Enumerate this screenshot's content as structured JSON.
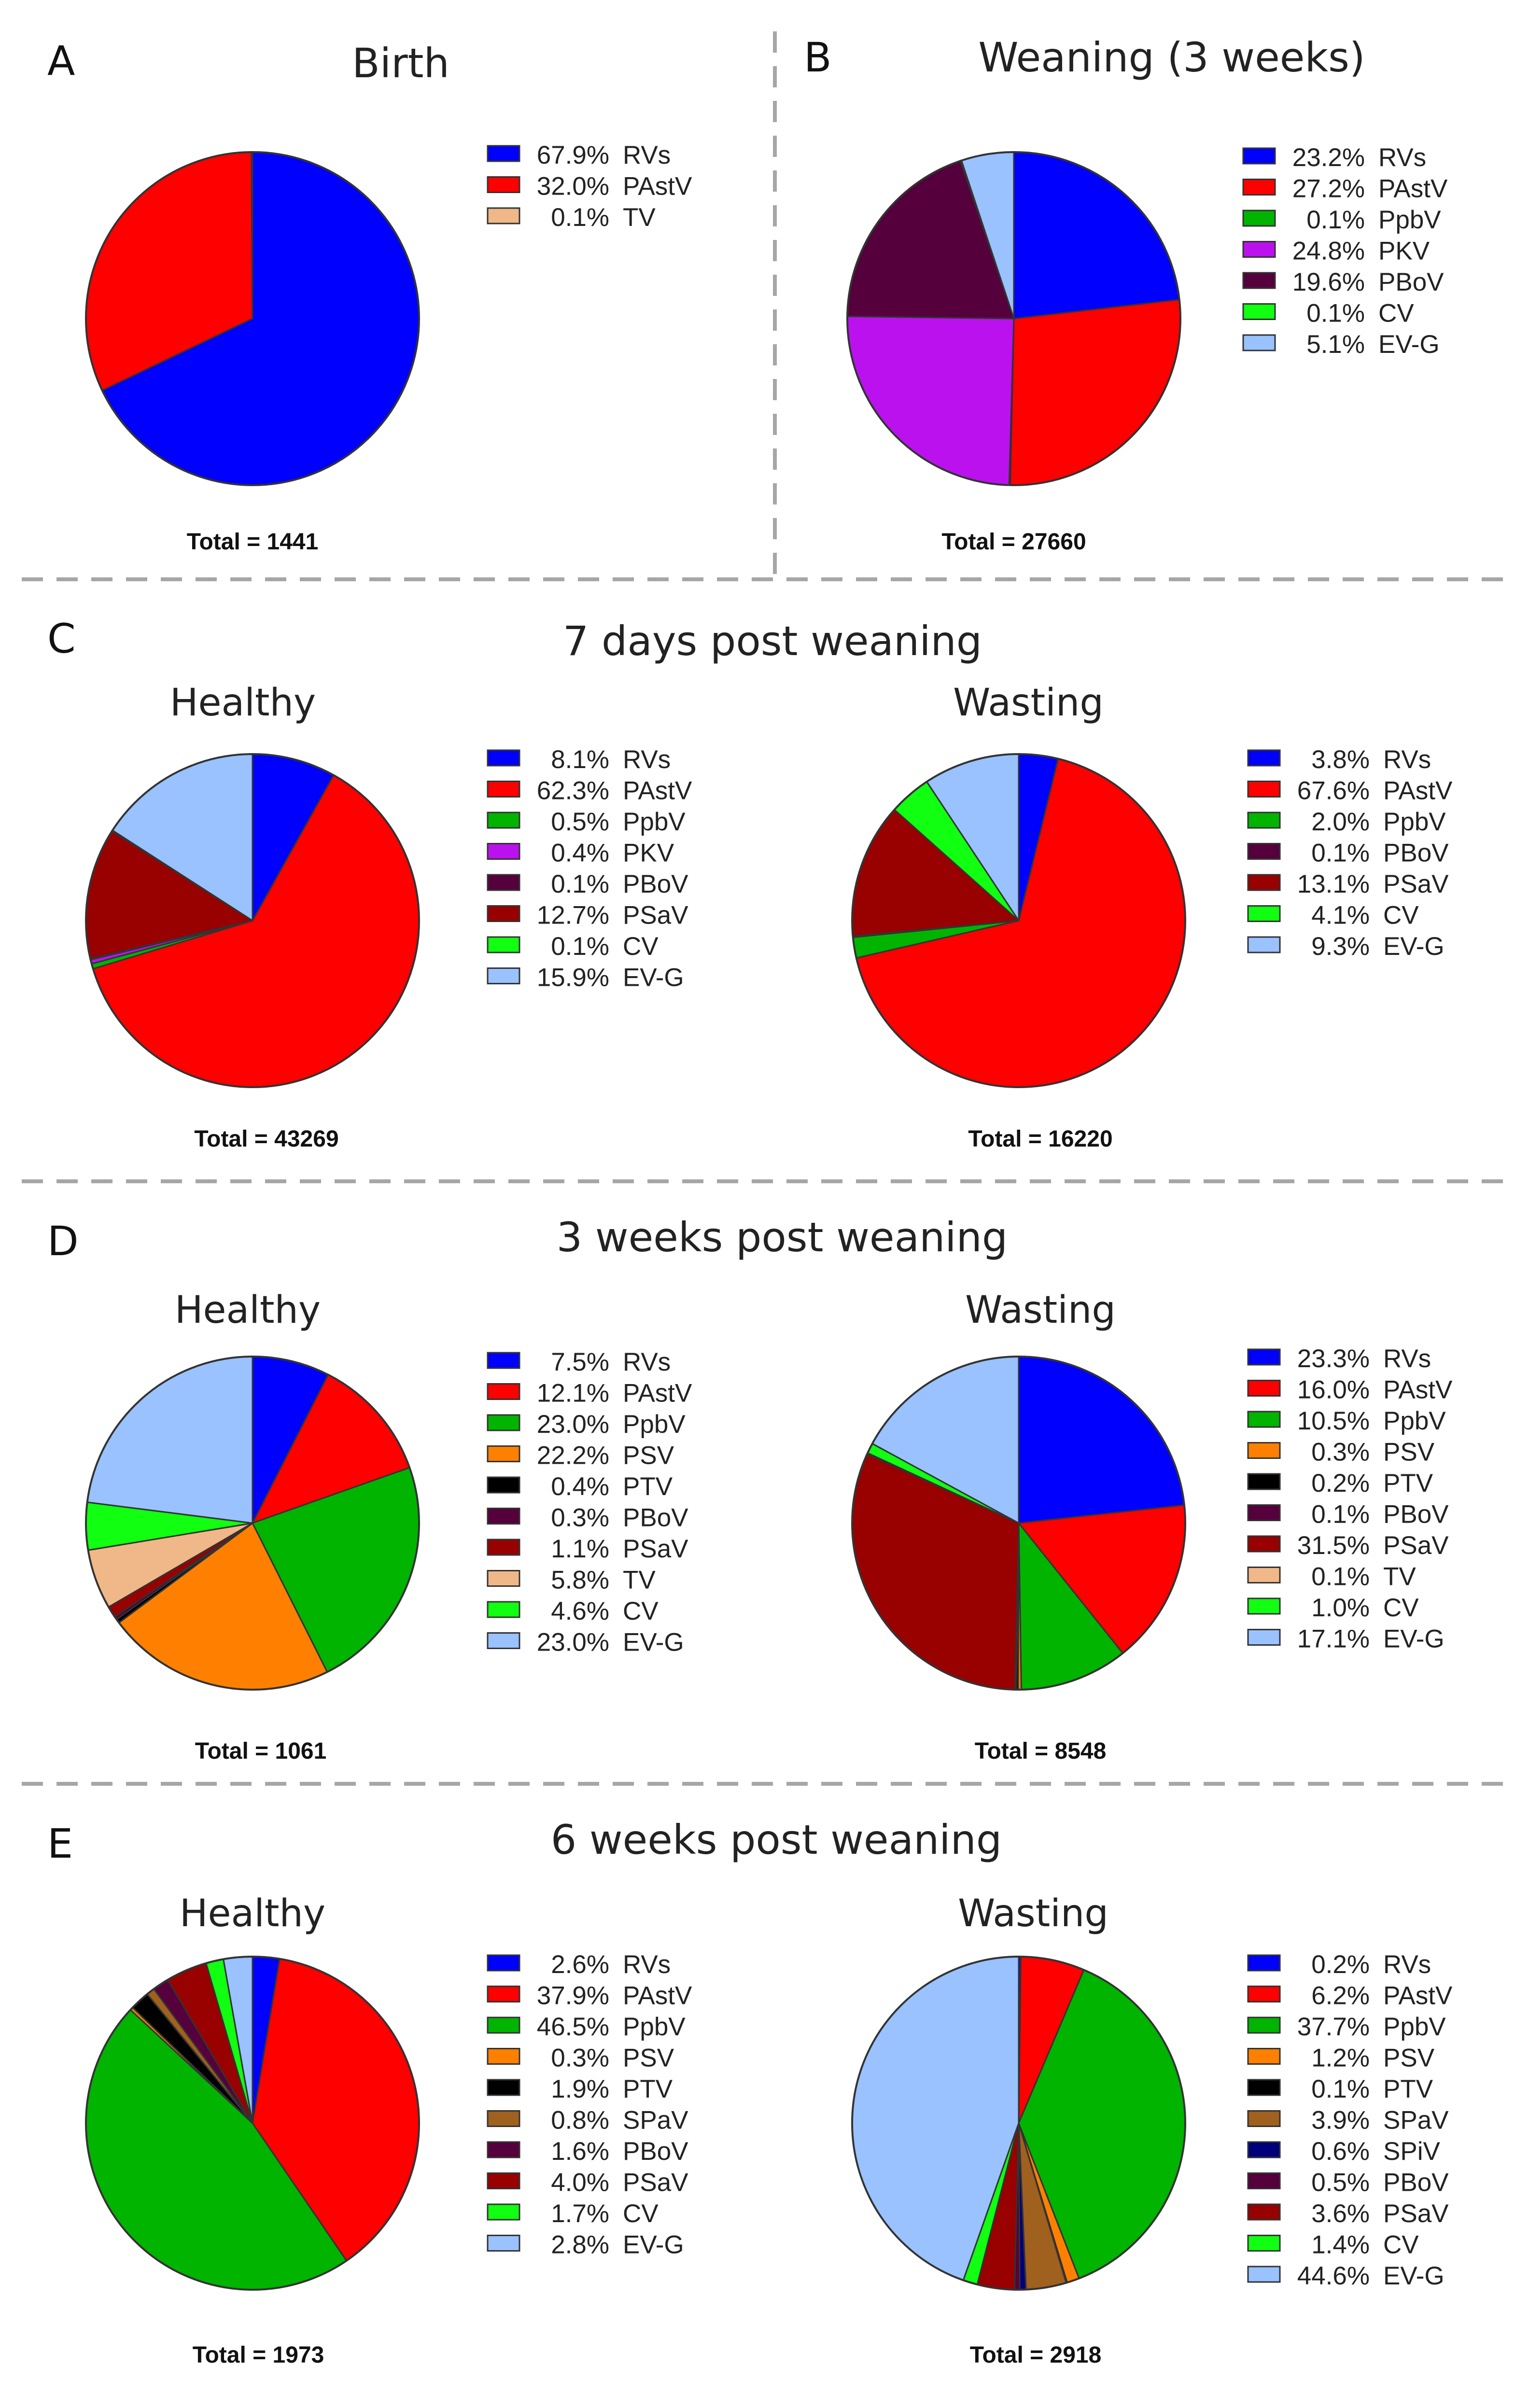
{
  "colors": {
    "RVs": "#0000ff",
    "PAstV": "#ff0000",
    "PpbV": "#00b400",
    "PKV": "#bb11ee",
    "PBoV": "#55003c",
    "CV": "#11ff11",
    "EV-G": "#99c2ff",
    "PSaV": "#990000",
    "TV": "#f0b888",
    "PSV": "#ff8000",
    "PTV": "#000000",
    "SPaV": "#a0601e",
    "SPiV": "#00007a",
    "edge": "#333333",
    "divider": "#a6a6a6"
  },
  "sections": {
    "A": {
      "letter": "A",
      "title": "Birth"
    },
    "B": {
      "letter": "B",
      "title": "Weaning (3 weeks)"
    },
    "C": {
      "letter": "C",
      "title": "7 days post weaning"
    },
    "D": {
      "letter": "D",
      "title": "3 weeks post weaning"
    },
    "E": {
      "letter": "E",
      "title": "6 weeks post weaning"
    }
  },
  "chart_data": [
    {
      "type": "pie",
      "panel": "A",
      "title": "Birth",
      "total": "Total = 1441",
      "slices": [
        {
          "pct": "67.9%",
          "label": "RVs",
          "value": 67.9
        },
        {
          "pct": "32.0%",
          "label": "PAstV",
          "value": 32.0
        },
        {
          "pct": "0.1%",
          "label": "TV",
          "value": 0.1
        }
      ]
    },
    {
      "type": "pie",
      "panel": "B",
      "title": "Weaning (3 weeks)",
      "total": "Total = 27660",
      "slices": [
        {
          "pct": "23.2%",
          "label": "RVs",
          "value": 23.2
        },
        {
          "pct": "27.2%",
          "label": "PAstV",
          "value": 27.2
        },
        {
          "pct": "0.1%",
          "label": "PpbV",
          "value": 0.1
        },
        {
          "pct": "24.8%",
          "label": "PKV",
          "value": 24.8
        },
        {
          "pct": "19.6%",
          "label": "PBoV",
          "value": 19.6
        },
        {
          "pct": "0.1%",
          "label": "CV",
          "value": 0.1
        },
        {
          "pct": "5.1%",
          "label": "EV-G",
          "value": 5.1
        }
      ]
    },
    {
      "type": "pie",
      "panel": "C",
      "title": "Healthy",
      "total": "Total = 43269",
      "slices": [
        {
          "pct": "8.1%",
          "label": "RVs",
          "value": 8.1
        },
        {
          "pct": "62.3%",
          "label": "PAstV",
          "value": 62.3
        },
        {
          "pct": "0.5%",
          "label": "PpbV",
          "value": 0.5
        },
        {
          "pct": "0.4%",
          "label": "PKV",
          "value": 0.4
        },
        {
          "pct": "0.1%",
          "label": "PBoV",
          "value": 0.1
        },
        {
          "pct": "12.7%",
          "label": "PSaV",
          "value": 12.7
        },
        {
          "pct": "0.1%",
          "label": "CV",
          "value": 0.1
        },
        {
          "pct": "15.9%",
          "label": "EV-G",
          "value": 15.9
        }
      ]
    },
    {
      "type": "pie",
      "panel": "C",
      "title": "Wasting",
      "total": "Total = 16220",
      "slices": [
        {
          "pct": "3.8%",
          "label": "RVs",
          "value": 3.8
        },
        {
          "pct": "67.6%",
          "label": "PAstV",
          "value": 67.6
        },
        {
          "pct": "2.0%",
          "label": "PpbV",
          "value": 2.0
        },
        {
          "pct": "0.1%",
          "label": "PBoV",
          "value": 0.1
        },
        {
          "pct": "13.1%",
          "label": "PSaV",
          "value": 13.1
        },
        {
          "pct": "4.1%",
          "label": "CV",
          "value": 4.1
        },
        {
          "pct": "9.3%",
          "label": "EV-G",
          "value": 9.3
        }
      ]
    },
    {
      "type": "pie",
      "panel": "D",
      "title": "Healthy",
      "total": "Total = 1061",
      "slices": [
        {
          "pct": "7.5%",
          "label": "RVs",
          "value": 7.5
        },
        {
          "pct": "12.1%",
          "label": "PAstV",
          "value": 12.1
        },
        {
          "pct": "23.0%",
          "label": "PpbV",
          "value": 23.0
        },
        {
          "pct": "22.2%",
          "label": "PSV",
          "value": 22.2
        },
        {
          "pct": "0.4%",
          "label": "PTV",
          "value": 0.4
        },
        {
          "pct": "0.3%",
          "label": "PBoV",
          "value": 0.3
        },
        {
          "pct": "1.1%",
          "label": "PSaV",
          "value": 1.1
        },
        {
          "pct": "5.8%",
          "label": "TV",
          "value": 5.8
        },
        {
          "pct": "4.6%",
          "label": "CV",
          "value": 4.6
        },
        {
          "pct": "23.0%",
          "label": "EV-G",
          "value": 23.0
        }
      ]
    },
    {
      "type": "pie",
      "panel": "D",
      "title": "Wasting",
      "total": "Total = 8548",
      "slices": [
        {
          "pct": "23.3%",
          "label": "RVs",
          "value": 23.3
        },
        {
          "pct": "16.0%",
          "label": "PAstV",
          "value": 16.0
        },
        {
          "pct": "10.5%",
          "label": "PpbV",
          "value": 10.5
        },
        {
          "pct": "0.3%",
          "label": "PSV",
          "value": 0.3
        },
        {
          "pct": "0.2%",
          "label": "PTV",
          "value": 0.2
        },
        {
          "pct": "0.1%",
          "label": "PBoV",
          "value": 0.1
        },
        {
          "pct": "31.5%",
          "label": "PSaV",
          "value": 31.5
        },
        {
          "pct": "0.1%",
          "label": "TV",
          "value": 0.1
        },
        {
          "pct": "1.0%",
          "label": "CV",
          "value": 1.0
        },
        {
          "pct": "17.1%",
          "label": "EV-G",
          "value": 17.1
        }
      ]
    },
    {
      "type": "pie",
      "panel": "E",
      "title": "Healthy",
      "total": "Total = 1973",
      "slices": [
        {
          "pct": "2.6%",
          "label": "RVs",
          "value": 2.6
        },
        {
          "pct": "37.9%",
          "label": "PAstV",
          "value": 37.9
        },
        {
          "pct": "46.5%",
          "label": "PpbV",
          "value": 46.5
        },
        {
          "pct": "0.3%",
          "label": "PSV",
          "value": 0.3
        },
        {
          "pct": "1.9%",
          "label": "PTV",
          "value": 1.9
        },
        {
          "pct": "0.8%",
          "label": "SPaV",
          "value": 0.8
        },
        {
          "pct": "1.6%",
          "label": "PBoV",
          "value": 1.6
        },
        {
          "pct": "4.0%",
          "label": "PSaV",
          "value": 4.0
        },
        {
          "pct": "1.7%",
          "label": "CV",
          "value": 1.7
        },
        {
          "pct": "2.8%",
          "label": "EV-G",
          "value": 2.8
        }
      ]
    },
    {
      "type": "pie",
      "panel": "E",
      "title": "Wasting",
      "total": "Total = 2918",
      "slices": [
        {
          "pct": "0.2%",
          "label": "RVs",
          "value": 0.2
        },
        {
          "pct": "6.2%",
          "label": "PAstV",
          "value": 6.2
        },
        {
          "pct": "37.7%",
          "label": "PpbV",
          "value": 37.7
        },
        {
          "pct": "1.2%",
          "label": "PSV",
          "value": 1.2
        },
        {
          "pct": "0.1%",
          "label": "PTV",
          "value": 0.1
        },
        {
          "pct": "3.9%",
          "label": "SPaV",
          "value": 3.9
        },
        {
          "pct": "0.6%",
          "label": "SPiV",
          "value": 0.6
        },
        {
          "pct": "0.5%",
          "label": "PBoV",
          "value": 0.5
        },
        {
          "pct": "3.6%",
          "label": "PSaV",
          "value": 3.6
        },
        {
          "pct": "1.4%",
          "label": "CV",
          "value": 1.4
        },
        {
          "pct": "44.6%",
          "label": "EV-G",
          "value": 44.6
        }
      ]
    }
  ]
}
